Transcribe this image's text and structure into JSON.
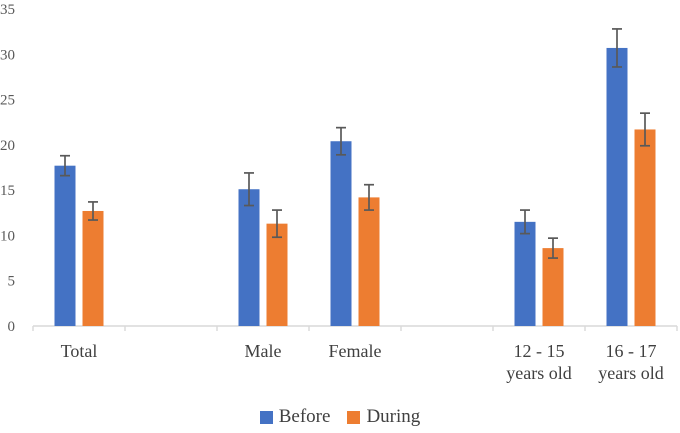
{
  "chart_data": {
    "type": "bar",
    "title": "",
    "categories": [
      "Total",
      "",
      "Male",
      "Female",
      "",
      "12 - 15\nyears old",
      "16 - 17\nyears old"
    ],
    "series": [
      {
        "name": "Before",
        "color": "#4472C4",
        "values": [
          17.7,
          null,
          15.1,
          20.4,
          null,
          11.5,
          30.7
        ],
        "errors": [
          1.1,
          null,
          1.8,
          1.5,
          null,
          1.3,
          2.1
        ]
      },
      {
        "name": "During",
        "color": "#ED7D31",
        "values": [
          12.7,
          null,
          11.3,
          14.2,
          null,
          8.6,
          21.7
        ],
        "errors": [
          1.0,
          null,
          1.5,
          1.4,
          null,
          1.1,
          1.8
        ]
      }
    ],
    "y_ticks": [
      0,
      5,
      10,
      15,
      20,
      25,
      30,
      35
    ],
    "ylim": [
      0,
      35
    ],
    "xlabel": "",
    "ylabel": "",
    "grid": false,
    "legend_position": "bottom",
    "error_bars": true,
    "colors": {
      "before": "#4472C4",
      "during": "#ED7D31",
      "error_bar": "#595959",
      "axis_line": "#D9D9D9",
      "tick_label": "#595959",
      "category_label": "#404040"
    }
  }
}
